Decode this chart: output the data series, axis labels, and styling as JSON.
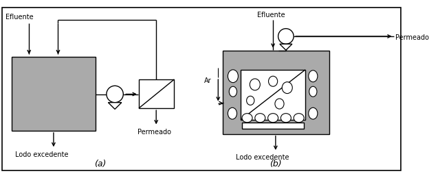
{
  "bg_color": "#ffffff",
  "border_color": "#000000",
  "gray_fill": "#aaaaaa",
  "inner_gray": "#c0c0c0",
  "white": "#ffffff",
  "label_a": "(a)",
  "label_b": "(b)",
  "text_efluente": "Efluente",
  "text_permeado": "Permeado",
  "text_lodo": "Lodo excedente",
  "text_ar": "Ar",
  "figw": 6.24,
  "figh": 2.6,
  "dpi": 100
}
